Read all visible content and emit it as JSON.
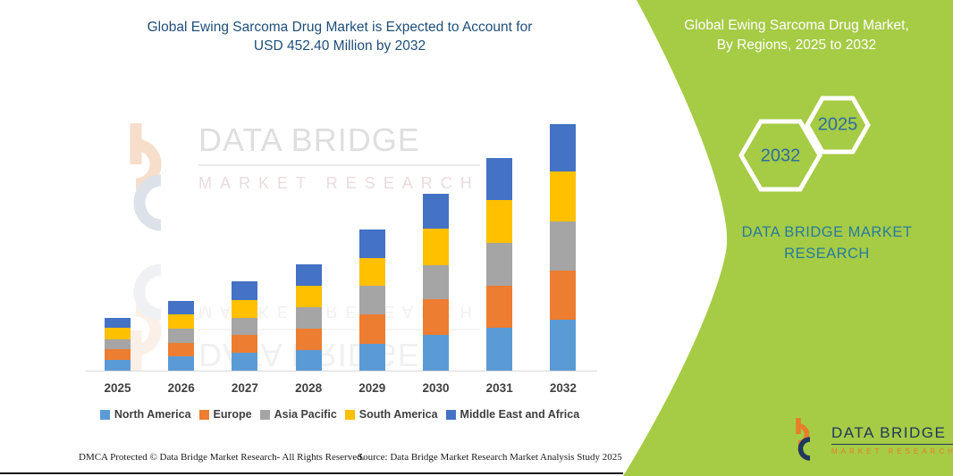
{
  "colors": {
    "panel_green": "#A6CB45",
    "title_blue": "#1F4E79",
    "axis_gray": "#D9D9D9",
    "label_gray": "#3F3F3F",
    "brand_teal": "#267C9E",
    "hex_year_blue": "#2E6E9E",
    "logo_navy": "#21375B",
    "logo_orange": "#E87D2B"
  },
  "left_panel": {
    "title_line1": "Global Ewing Sarcoma Drug Market is Expected to Account for",
    "title_line2": "USD 452.40 Million by 2032",
    "watermark": {
      "brand": "DATA BRIDGE",
      "sub": "MARKET RESEARCH"
    },
    "footer": {
      "dmca": "DMCA Protected © Data Bridge Market Research- All Rights Reserved.",
      "source": "Source: Data Bridge Market Research Market Analysis Study 2025"
    }
  },
  "right_panel": {
    "title_line1": "Global Ewing Sarcoma Drug Market,",
    "title_line2": "By Regions, 2025 to 2032",
    "hexagon_years": {
      "back": "2032",
      "front": "2025"
    },
    "brand_line1": "DATA BRIDGE MARKET",
    "brand_line2": "RESEARCH",
    "logo": {
      "brand": "DATA BRIDGE",
      "sub": "MARKET RESEARCH"
    }
  },
  "chart_data": {
    "type": "bar",
    "stacked": true,
    "title": "Global Ewing Sarcoma Drug Market is Expected to Account for USD 452.40 Million by 2032",
    "unit": "USD Million",
    "categories": [
      "2025",
      "2026",
      "2027",
      "2028",
      "2029",
      "2030",
      "2031",
      "2032"
    ],
    "series": [
      {
        "name": "North America",
        "color": "#5B9BD5",
        "values": [
          19.7,
          26.2,
          32.8,
          37.7,
          49.2,
          65.6,
          78.7,
          93.4
        ]
      },
      {
        "name": "Europe",
        "color": "#ED7D31",
        "values": [
          19.7,
          24.6,
          32.8,
          39.3,
          54.1,
          65.6,
          77.0,
          90.1
        ]
      },
      {
        "name": "Asia Pacific",
        "color": "#A5A5A5",
        "values": [
          18.0,
          26.2,
          31.1,
          39.3,
          52.4,
          62.3,
          78.7,
          90.1
        ]
      },
      {
        "name": "South America",
        "color": "#FFC000",
        "values": [
          21.3,
          26.2,
          32.8,
          39.3,
          50.8,
          67.2,
          78.7,
          91.8
        ]
      },
      {
        "name": "Middle East and Africa",
        "color": "#4472C4",
        "values": [
          18.0,
          24.6,
          34.4,
          39.3,
          52.4,
          63.9,
          77.0,
          87.0
        ]
      }
    ],
    "totals": [
      96.7,
      127.8,
      163.9,
      194.9,
      258.9,
      324.6,
      390.1,
      452.4
    ],
    "ylim": [
      0,
      460
    ],
    "grid": false,
    "yaxis_visible": false,
    "legend_position": "bottom"
  }
}
